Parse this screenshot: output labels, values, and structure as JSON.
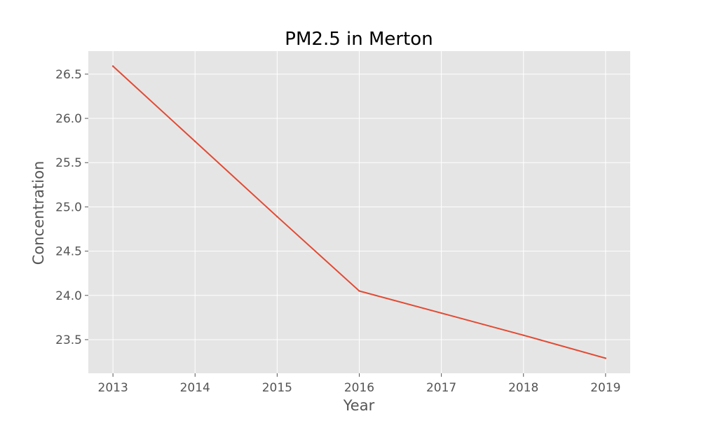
{
  "chart_data": {
    "type": "line",
    "title": "PM2.5 in Merton",
    "xlabel": "Year",
    "ylabel": "Concentration",
    "x": [
      2013,
      2014,
      2015,
      2016,
      2017,
      2018,
      2019
    ],
    "series": [
      {
        "values": [
          26.59,
          25.74,
          24.89,
          24.05,
          23.8,
          23.55,
          23.29
        ]
      }
    ],
    "xlim": [
      2012.7,
      2019.3
    ],
    "ylim": [
      23.12,
      26.76
    ],
    "x_ticks": [
      2013,
      2014,
      2015,
      2016,
      2017,
      2018,
      2019
    ],
    "x_tick_labels": [
      "2013",
      "2014",
      "2015",
      "2016",
      "2017",
      "2018",
      "2019"
    ],
    "y_ticks": [
      23.5,
      24.0,
      24.5,
      25.0,
      25.5,
      26.0,
      26.5
    ],
    "y_tick_labels": [
      "23.5",
      "24.0",
      "24.5",
      "25.0",
      "25.5",
      "26.0",
      "26.5"
    ],
    "grid": true,
    "legend": "none",
    "colors": {
      "line": "#E24A33",
      "plot_background": "#E5E5E5",
      "grid": "#FFFFFF",
      "tick_text": "#555555",
      "title_text": "#000000"
    }
  }
}
